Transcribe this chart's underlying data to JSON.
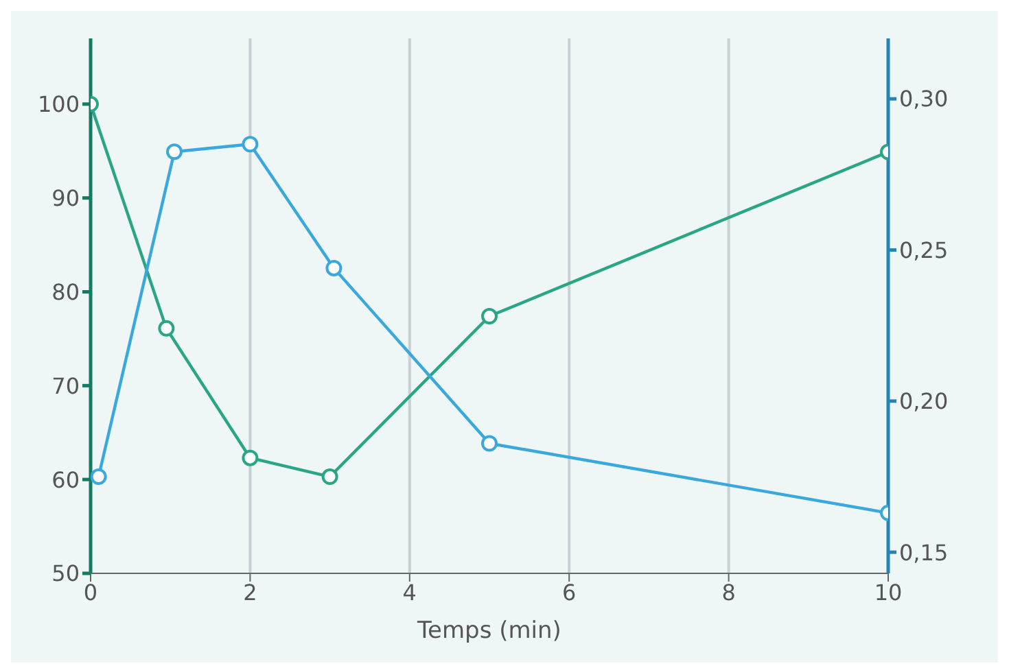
{
  "chart_data": {
    "type": "line",
    "xlabel": "Temps (min)",
    "xlim": [
      0,
      10
    ],
    "xticks": [
      0,
      2,
      4,
      6,
      8,
      10
    ],
    "ylim": [
      50,
      107
    ],
    "yticks": [
      50,
      60,
      70,
      80,
      90,
      100
    ],
    "y2lim": [
      0.143,
      0.32
    ],
    "y2ticks": [
      {
        "value": 0.15,
        "label": "0,15"
      },
      {
        "value": 0.2,
        "label": "0,20"
      },
      {
        "value": 0.25,
        "label": "0,25"
      },
      {
        "value": 0.3,
        "label": "0,30"
      }
    ],
    "grid": "x",
    "marker": "circle",
    "line_style": "solid",
    "legend": false,
    "series": [
      {
        "color": "#2aa585",
        "x": [
          0,
          0.95,
          2,
          3,
          5,
          10
        ],
        "values": [
          100,
          76.1,
          62.3,
          60.3,
          77.4,
          94.9
        ]
      },
      {
        "color": "#3aa8dc",
        "axis": "y2",
        "x": [
          0.1,
          1.05,
          2,
          3.05,
          5,
          10
        ],
        "values": [
          0.175,
          0.2825,
          0.285,
          0.244,
          0.186,
          0.163
        ]
      }
    ]
  }
}
